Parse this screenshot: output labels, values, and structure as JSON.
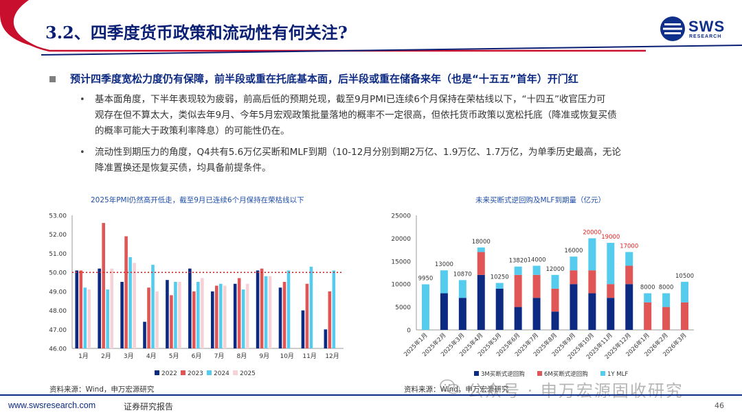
{
  "header": {
    "title": "3.2、四季度货币政策和流动性有何关注?",
    "logo": {
      "icon": "sws-logo-icon",
      "word": "SWS",
      "sub": "RESEARCH"
    },
    "colors": {
      "accent_red": "#c8102e",
      "navy": "#0a1f74"
    }
  },
  "content": {
    "main_point": "预计四季度宽松力度仍有保障，前半段或重在托底基本面，后半段或重在储备来年（也是“十五五”首年）开门红",
    "bullets": [
      {
        "lines": [
          "基本面角度，下半年表现较为疲弱，前高后低的预期兑现，截至9月PMI已连续6个月保持在荣枯线以下，“十四五”收官压力可",
          "观存在但不算太大，类似去年9月、今年5月宏观政策批量落地的概率不一定很高，但依托货币政策以宽松托底（降准或恢复买债",
          "的概率可能大于政策利率降息）的可能性仍在。"
        ]
      },
      {
        "lines": [
          "流动性到期压力的角度，Q4共有5.6万亿买断和MLF到期（10-12月分别到期2万亿、1.9万亿、1.7万亿，为单季历史最高，无论",
          "降准置换还是恢复买债，均具备前提条件。"
        ]
      }
    ]
  },
  "chart_data": [
    {
      "type": "bar",
      "title": "2025年PMI仍然高开低走，截至9月已连续6个月保持在荣枯线以下",
      "categories": [
        "1月",
        "2月",
        "3月",
        "4月",
        "5月",
        "6月",
        "7月",
        "8月",
        "9月",
        "10月",
        "11月",
        "12月"
      ],
      "series": [
        {
          "name": "2022",
          "color": "#0c2a82",
          "values": [
            50.1,
            50.2,
            49.5,
            47.4,
            49.6,
            50.2,
            49.0,
            49.4,
            50.1,
            49.2,
            48.0,
            47.0
          ]
        },
        {
          "name": "2023",
          "color": "#e05555",
          "values": [
            50.1,
            52.6,
            51.9,
            49.2,
            48.8,
            49.0,
            49.3,
            49.7,
            50.2,
            49.5,
            49.4,
            49.0
          ]
        },
        {
          "name": "2024",
          "color": "#55ccee",
          "values": [
            49.2,
            49.1,
            50.8,
            50.4,
            49.5,
            49.5,
            49.4,
            49.1,
            49.8,
            50.1,
            50.3,
            50.1
          ]
        },
        {
          "name": "2025",
          "color": "#f6d2d6",
          "values": [
            49.1,
            50.2,
            50.5,
            49.0,
            49.5,
            49.7,
            49.3,
            49.4,
            49.8,
            null,
            null,
            null
          ]
        }
      ],
      "reference_line": 50.0,
      "ylim": [
        46.0,
        53.0
      ],
      "yticks": [
        "46.00",
        "47.00",
        "48.00",
        "49.00",
        "50.00",
        "51.00",
        "52.00",
        "53.00"
      ],
      "legend_position": "bottom",
      "source": "资料来源：Wind，申万宏源研究"
    },
    {
      "type": "bar",
      "stacked": true,
      "title": "未来买断式逆回购及MLF到期量（亿元）",
      "categories": [
        "2025年1月",
        "2025年2月",
        "2025年3月",
        "2025年4月",
        "2025年5月",
        "2025年6月",
        "2025年7月",
        "2025年8月",
        "2025年9月",
        "2025年10月",
        "2025年11月",
        "2025年12月",
        "2026年1月",
        "2026年2月",
        "2026年3月"
      ],
      "series": [
        {
          "name": "3M买断式逆回购",
          "color": "#0c2a82",
          "values": [
            0,
            8000,
            7000,
            12000,
            9000,
            5000,
            7000,
            4000,
            10000,
            8000,
            7000,
            10000,
            0,
            0,
            0
          ]
        },
        {
          "name": "6M买断式逆回购",
          "color": "#e05555",
          "values": [
            0,
            0,
            0,
            5000,
            0,
            7000,
            5000,
            5000,
            3000,
            5000,
            3000,
            4000,
            6000,
            5000,
            6000
          ]
        },
        {
          "name": "1Y MLF",
          "color": "#55ccee",
          "values": [
            9950,
            5000,
            3870,
            1000,
            1250,
            1820,
            2000,
            3000,
            3000,
            7000,
            9000,
            3000,
            2000,
            3000,
            4500
          ]
        }
      ],
      "totals": [
        "9950",
        "13000",
        "10870",
        "18000",
        "10250",
        "13820",
        "14000",
        "12000",
        "16000",
        "20000",
        "19000",
        "17000",
        "8000",
        "8000",
        "10500"
      ],
      "highlight_totals": [
        9,
        10,
        11
      ],
      "highlight_color": "#e02020",
      "ylim": [
        0,
        25000
      ],
      "yticks": [
        "0",
        "5000",
        "10000",
        "15000",
        "20000",
        "25000"
      ],
      "legend_position": "bottom",
      "source": "资料来源：Wind，申万宏源研究"
    }
  ],
  "watermark": {
    "icon": "wechat-icon",
    "text": "公众号 · 申万宏源固收研究"
  },
  "footer": {
    "url": "www.swsresearch.com",
    "report": "证券研究报告",
    "page": "46"
  }
}
